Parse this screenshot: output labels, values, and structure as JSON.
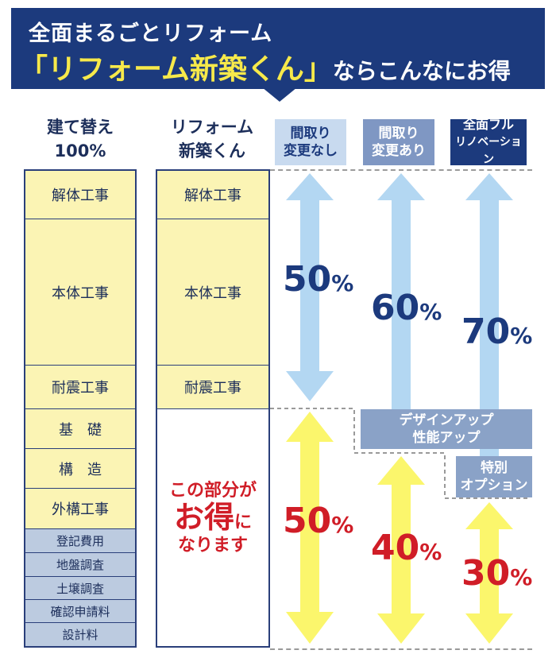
{
  "banner": {
    "line1": "全面まるごとリフォーム",
    "line2_highlight": "「リフォーム新築くん」",
    "line2_rest": "ならこんなにお得"
  },
  "columns": {
    "rebuild_header": [
      "建て替え",
      "100%"
    ],
    "reform_header": [
      "リフォーム",
      "新築くん"
    ]
  },
  "options": [
    {
      "label": [
        "間取り",
        "変更なし"
      ],
      "upper_pct": "50",
      "lower_pct": "50"
    },
    {
      "label": [
        "間取り",
        "変更あり"
      ],
      "upper_pct": "60",
      "lower_pct": "40"
    },
    {
      "label": [
        "全面フル",
        "リノベーション"
      ],
      "upper_pct": "70",
      "lower_pct": "30"
    }
  ],
  "percent_sign": "%",
  "rebuild_items": [
    "解体工事",
    "本体工事",
    "耐震工事",
    "基　礎",
    "構　造",
    "外構工事",
    "登記費用",
    "地盤調査",
    "土壌調査",
    "確認申請料",
    "設計料"
  ],
  "reform_items": [
    "解体工事",
    "本体工事",
    "耐震工事"
  ],
  "savings_note": {
    "line1": "この部分が",
    "big": "お得",
    "small": "に",
    "line3": "なります"
  },
  "extra_bands": {
    "design": [
      "デザインアップ",
      "性能アップ"
    ],
    "special": [
      "特別",
      "オプション"
    ]
  },
  "colors": {
    "navy": "#1c3a7d",
    "yellow_cell": "#fbf4b4",
    "blue_cell": "#bccbe0",
    "red": "#d01d27",
    "light_blue_arrow": "#b3d7f2",
    "yellow_arrow": "#fbf66c"
  }
}
